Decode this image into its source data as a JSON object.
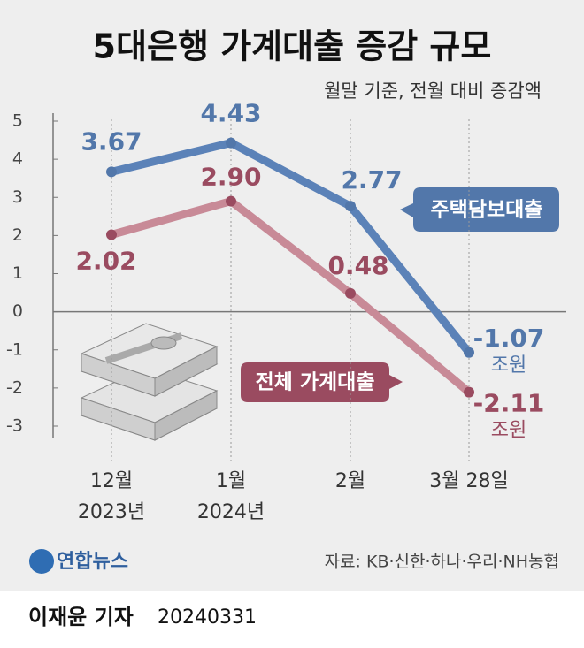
{
  "chart_data": {
    "type": "line",
    "title": "5대은행 가계대출 증감 규모",
    "subtitle": "월말 기준, 전월 대비 증감액",
    "categories": [
      "12월",
      "1월",
      "2월",
      "3월 28일"
    ],
    "category_years": [
      "2023년",
      "2024년",
      null,
      null
    ],
    "series": [
      {
        "name": "주택담보대출",
        "color": "#5277aa",
        "values": [
          3.67,
          4.43,
          2.77,
          -1.07
        ],
        "value_labels": [
          "3.67",
          "4.43",
          "2.77",
          "-1.07"
        ]
      },
      {
        "name": "전체 가계대출",
        "color": "#9a4b60",
        "values": [
          2.02,
          2.9,
          0.48,
          -2.11
        ],
        "value_labels": [
          "2.02",
          "2.90",
          "0.48",
          "-2.11"
        ]
      }
    ],
    "unit": "조원",
    "ylim": [
      -3,
      5
    ],
    "yticks": [
      -3,
      -2,
      -1,
      0,
      1,
      2,
      3,
      4,
      5
    ],
    "logo": "연합뉴스",
    "source": "자료: KB·신한·하나·우리·NH농협",
    "byline": "이재윤 기자",
    "date": "20240331"
  }
}
